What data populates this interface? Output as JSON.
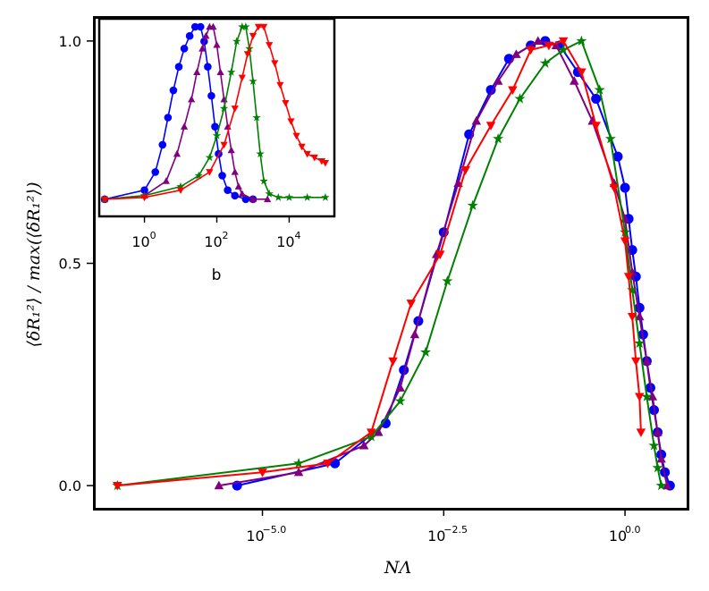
{
  "chart_data": [
    {
      "id": "main",
      "type": "line",
      "xscale": "log10",
      "xlabel": "NΛ",
      "ylabel": "⟨δR₁²⟩ / max(⟨δR₁²⟩)",
      "xlim": [
        -7.3,
        0.85
      ],
      "ylim": [
        -0.05,
        1.05
      ],
      "xticks": [
        {
          "exp": -5.0,
          "base": "10",
          "sup": "−5.0"
        },
        {
          "exp": -2.5,
          "base": "10",
          "sup": "−2.5"
        },
        {
          "exp": 0.0,
          "base": "10",
          "sup": "0.0"
        }
      ],
      "yticks": [
        {
          "value": 0.0,
          "label": "0.0"
        },
        {
          "value": 0.5,
          "label": "0.5"
        },
        {
          "value": 1.0,
          "label": "1.0"
        }
      ],
      "series": [
        {
          "name": "blue-circles",
          "color": "#0000ff",
          "marker": "circle",
          "points": [
            [
              -5.35,
              0.0
            ],
            [
              -4.0,
              0.05
            ],
            [
              -3.3,
              0.14
            ],
            [
              -3.05,
              0.26
            ],
            [
              -2.85,
              0.37
            ],
            [
              -2.5,
              0.57
            ],
            [
              -2.15,
              0.79
            ],
            [
              -1.85,
              0.89
            ],
            [
              -1.6,
              0.96
            ],
            [
              -1.3,
              0.99
            ],
            [
              -1.1,
              1.0
            ],
            [
              -0.9,
              0.99
            ],
            [
              -0.65,
              0.93
            ],
            [
              -0.4,
              0.87
            ],
            [
              -0.1,
              0.74
            ],
            [
              0.0,
              0.67
            ],
            [
              0.05,
              0.6
            ],
            [
              0.1,
              0.53
            ],
            [
              0.15,
              0.47
            ],
            [
              0.2,
              0.4
            ],
            [
              0.25,
              0.34
            ],
            [
              0.3,
              0.28
            ],
            [
              0.35,
              0.22
            ],
            [
              0.4,
              0.17
            ],
            [
              0.45,
              0.12
            ],
            [
              0.5,
              0.07
            ],
            [
              0.55,
              0.03
            ],
            [
              0.62,
              0.0
            ]
          ]
        },
        {
          "name": "purple-triangles",
          "color": "#800080",
          "marker": "triangle-up",
          "points": [
            [
              -5.6,
              0.0
            ],
            [
              -4.5,
              0.03
            ],
            [
              -3.6,
              0.09
            ],
            [
              -3.4,
              0.12
            ],
            [
              -3.1,
              0.22
            ],
            [
              -2.9,
              0.34
            ],
            [
              -2.6,
              0.52
            ],
            [
              -2.3,
              0.68
            ],
            [
              -2.05,
              0.82
            ],
            [
              -1.75,
              0.91
            ],
            [
              -1.5,
              0.97
            ],
            [
              -1.2,
              1.0
            ],
            [
              -0.95,
              0.99
            ],
            [
              -0.7,
              0.91
            ],
            [
              -0.45,
              0.82
            ],
            [
              -0.15,
              0.68
            ],
            [
              0.0,
              0.6
            ],
            [
              0.1,
              0.48
            ],
            [
              0.2,
              0.38
            ],
            [
              0.3,
              0.28
            ],
            [
              0.38,
              0.2
            ],
            [
              0.45,
              0.12
            ],
            [
              0.5,
              0.06
            ],
            [
              0.58,
              0.0
            ]
          ]
        },
        {
          "name": "green-stars",
          "color": "#008000",
          "marker": "star",
          "points": [
            [
              -7.0,
              0.0
            ],
            [
              -4.5,
              0.05
            ],
            [
              -3.5,
              0.11
            ],
            [
              -3.1,
              0.19
            ],
            [
              -2.75,
              0.3
            ],
            [
              -2.45,
              0.46
            ],
            [
              -2.1,
              0.63
            ],
            [
              -1.75,
              0.78
            ],
            [
              -1.45,
              0.87
            ],
            [
              -1.1,
              0.95
            ],
            [
              -0.85,
              0.98
            ],
            [
              -0.6,
              1.0
            ],
            [
              -0.35,
              0.89
            ],
            [
              -0.2,
              0.78
            ],
            [
              0.0,
              0.57
            ],
            [
              0.1,
              0.44
            ],
            [
              0.2,
              0.32
            ],
            [
              0.3,
              0.2
            ],
            [
              0.4,
              0.09
            ],
            [
              0.45,
              0.04
            ],
            [
              0.5,
              0.0
            ]
          ]
        },
        {
          "name": "red-triangles-down",
          "color": "#ff0000",
          "marker": "triangle-down",
          "points": [
            [
              -7.0,
              0.0
            ],
            [
              -5.0,
              0.03
            ],
            [
              -4.1,
              0.05
            ],
            [
              -3.5,
              0.12
            ],
            [
              -3.2,
              0.28
            ],
            [
              -2.95,
              0.41
            ],
            [
              -2.55,
              0.52
            ],
            [
              -2.2,
              0.71
            ],
            [
              -1.85,
              0.81
            ],
            [
              -1.55,
              0.89
            ],
            [
              -1.3,
              0.98
            ],
            [
              -1.05,
              0.99
            ],
            [
              -0.85,
              1.0
            ],
            [
              -0.6,
              0.93
            ],
            [
              -0.4,
              0.81
            ],
            [
              -0.15,
              0.67
            ],
            [
              0.0,
              0.55
            ],
            [
              0.05,
              0.47
            ],
            [
              0.1,
              0.38
            ],
            [
              0.15,
              0.28
            ],
            [
              0.2,
              0.2
            ],
            [
              0.22,
              0.12
            ]
          ]
        }
      ]
    },
    {
      "id": "inset",
      "type": "line",
      "xscale": "log10",
      "xlabel": "b",
      "ylabel": "",
      "xlim": [
        -1.2,
        5.2
      ],
      "ylim": [
        0.0,
        1.0
      ],
      "xticks": [
        {
          "exp": 0,
          "base": "10",
          "sup": "0"
        },
        {
          "exp": 2,
          "base": "10",
          "sup": "2"
        },
        {
          "exp": 4,
          "base": "10",
          "sup": "4"
        }
      ],
      "series": [
        {
          "name": "blue-circles",
          "color": "#0000ff",
          "marker": "circle",
          "points": [
            [
              -1.1,
              0.05
            ],
            [
              0.0,
              0.1
            ],
            [
              0.3,
              0.2
            ],
            [
              0.5,
              0.35
            ],
            [
              0.65,
              0.5
            ],
            [
              0.8,
              0.65
            ],
            [
              0.95,
              0.78
            ],
            [
              1.1,
              0.88
            ],
            [
              1.25,
              0.95
            ],
            [
              1.4,
              1.0
            ],
            [
              1.55,
              1.0
            ],
            [
              1.65,
              0.92
            ],
            [
              1.75,
              0.78
            ],
            [
              1.85,
              0.62
            ],
            [
              1.95,
              0.45
            ],
            [
              2.05,
              0.3
            ],
            [
              2.15,
              0.18
            ],
            [
              2.3,
              0.1
            ],
            [
              2.5,
              0.07
            ],
            [
              2.8,
              0.05
            ],
            [
              3.0,
              0.05
            ]
          ]
        },
        {
          "name": "purple-triangles",
          "color": "#800080",
          "marker": "triangle-up",
          "points": [
            [
              -1.1,
              0.05
            ],
            [
              0.0,
              0.07
            ],
            [
              0.6,
              0.15
            ],
            [
              0.9,
              0.3
            ],
            [
              1.1,
              0.45
            ],
            [
              1.3,
              0.6
            ],
            [
              1.45,
              0.75
            ],
            [
              1.6,
              0.88
            ],
            [
              1.7,
              0.95
            ],
            [
              1.8,
              1.0
            ],
            [
              1.9,
              1.0
            ],
            [
              2.0,
              0.9
            ],
            [
              2.1,
              0.75
            ],
            [
              2.2,
              0.6
            ],
            [
              2.3,
              0.45
            ],
            [
              2.4,
              0.32
            ],
            [
              2.5,
              0.2
            ],
            [
              2.6,
              0.12
            ],
            [
              2.7,
              0.08
            ],
            [
              3.0,
              0.05
            ],
            [
              3.4,
              0.05
            ]
          ]
        },
        {
          "name": "green-stars",
          "color": "#008000",
          "marker": "star",
          "points": [
            [
              -1.1,
              0.05
            ],
            [
              0.0,
              0.07
            ],
            [
              1.0,
              0.12
            ],
            [
              1.5,
              0.18
            ],
            [
              1.8,
              0.28
            ],
            [
              2.0,
              0.4
            ],
            [
              2.2,
              0.55
            ],
            [
              2.4,
              0.75
            ],
            [
              2.55,
              0.92
            ],
            [
              2.7,
              1.0
            ],
            [
              2.8,
              1.0
            ],
            [
              2.9,
              0.88
            ],
            [
              3.0,
              0.7
            ],
            [
              3.1,
              0.5
            ],
            [
              3.2,
              0.3
            ],
            [
              3.3,
              0.15
            ],
            [
              3.45,
              0.08
            ],
            [
              3.7,
              0.06
            ],
            [
              4.0,
              0.06
            ],
            [
              4.5,
              0.06
            ],
            [
              5.0,
              0.06
            ]
          ]
        },
        {
          "name": "red-triangles-down",
          "color": "#ff0000",
          "marker": "triangle-down",
          "points": [
            [
              -1.1,
              0.05
            ],
            [
              0.0,
              0.06
            ],
            [
              1.0,
              0.1
            ],
            [
              1.8,
              0.2
            ],
            [
              2.2,
              0.35
            ],
            [
              2.5,
              0.55
            ],
            [
              2.7,
              0.72
            ],
            [
              2.85,
              0.85
            ],
            [
              3.0,
              0.95
            ],
            [
              3.15,
              1.0
            ],
            [
              3.3,
              1.0
            ],
            [
              3.45,
              0.9
            ],
            [
              3.6,
              0.8
            ],
            [
              3.75,
              0.68
            ],
            [
              3.9,
              0.58
            ],
            [
              4.05,
              0.48
            ],
            [
              4.2,
              0.4
            ],
            [
              4.35,
              0.34
            ],
            [
              4.5,
              0.3
            ],
            [
              4.7,
              0.28
            ],
            [
              4.9,
              0.26
            ],
            [
              5.0,
              0.25
            ]
          ]
        }
      ]
    }
  ]
}
